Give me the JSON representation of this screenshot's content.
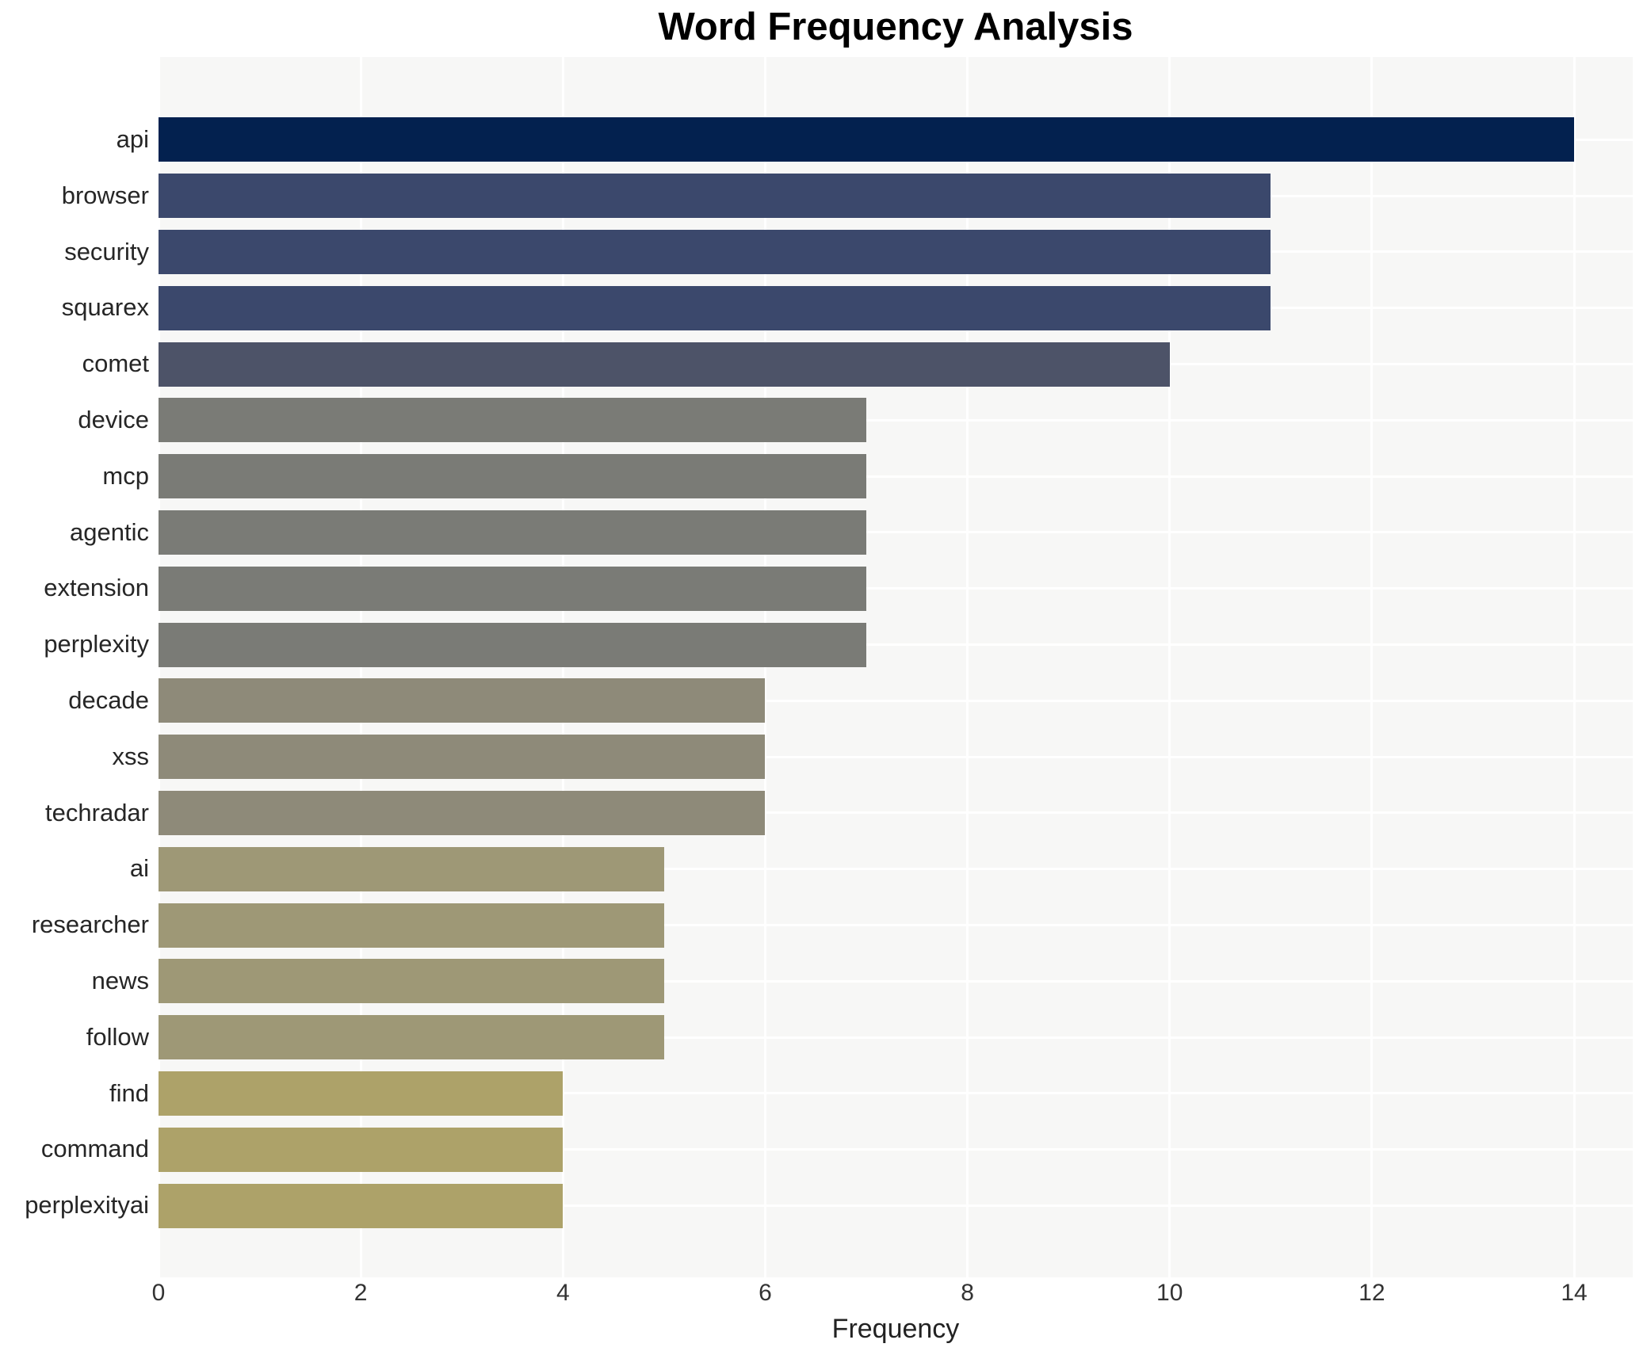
{
  "title": "Word Frequency Analysis",
  "x_axis": {
    "label": "Frequency",
    "ticks": [
      0,
      2,
      4,
      6,
      8,
      10,
      12,
      14
    ]
  },
  "colors": {
    "plot_background": "#f7f7f6",
    "gridline": "#ffffff",
    "title_text": "#000000",
    "tick_text": "#333333",
    "label_text": "#262626"
  },
  "chart_data": {
    "type": "bar",
    "orientation": "horizontal",
    "title": "Word Frequency Analysis",
    "xlabel": "Frequency",
    "ylabel": "",
    "categories": [
      "api",
      "browser",
      "security",
      "squarex",
      "comet",
      "device",
      "mcp",
      "agentic",
      "extension",
      "perplexity",
      "decade",
      "xss",
      "techradar",
      "ai",
      "researcher",
      "news",
      "follow",
      "find",
      "command",
      "perplexityai"
    ],
    "values": [
      14,
      11,
      11,
      11,
      10,
      7,
      7,
      7,
      7,
      7,
      6,
      6,
      6,
      5,
      5,
      5,
      5,
      4,
      4,
      4
    ],
    "bar_colors": [
      "#03214f",
      "#3b486c",
      "#3b486c",
      "#3b486c",
      "#4d5368",
      "#7a7b76",
      "#7a7b76",
      "#7a7b76",
      "#7a7b76",
      "#7a7b76",
      "#8e8a79",
      "#8e8a79",
      "#8e8a79",
      "#9e9876",
      "#9e9876",
      "#9e9876",
      "#9e9876",
      "#ada269",
      "#ada269",
      "#ada269"
    ],
    "xlim": [
      0,
      14.58
    ],
    "xticks": [
      0,
      2,
      4,
      6,
      8,
      10,
      12,
      14
    ],
    "grid": true,
    "legend": false
  }
}
